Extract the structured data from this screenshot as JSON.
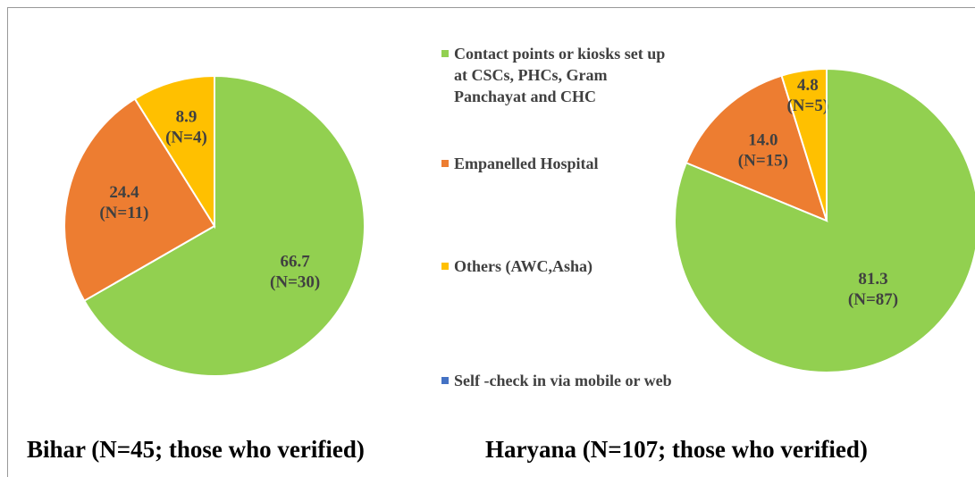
{
  "chart_data": [
    {
      "type": "pie",
      "title": "Bihar (N=45; those who verified)",
      "categories": [
        "Contact points or kiosks set up at CSCs, PHCs, Gram Panchayat and CHC",
        "Empanelled Hospital",
        "Others (AWC,Asha)",
        "Self -check in via mobile or web"
      ],
      "colors": [
        "#92d050",
        "#ed7d31",
        "#ffc000",
        "#4472c4"
      ],
      "values": [
        66.7,
        24.4,
        8.9,
        0
      ],
      "value_labels": [
        "66.7",
        "24.4",
        "8.9",
        null
      ],
      "counts": [
        30,
        11,
        4,
        0
      ],
      "count_labels": [
        "(N=30)",
        "(N=11)",
        "(N=4)",
        null
      ]
    },
    {
      "type": "pie",
      "title": "Haryana (N=107; those who verified)",
      "categories": [
        "Contact points or kiosks set up at CSCs, PHCs, Gram Panchayat and CHC",
        "Empanelled Hospital",
        "Others (AWC,Asha)",
        "Self -check in via mobile or web"
      ],
      "colors": [
        "#92d050",
        "#ed7d31",
        "#ffc000",
        "#4472c4"
      ],
      "values": [
        81.3,
        14.0,
        4.8,
        0
      ],
      "value_labels": [
        "81.3",
        "14.0",
        "4.8",
        null
      ],
      "counts": [
        87,
        15,
        5,
        0
      ],
      "count_labels": [
        "(N=87)",
        "(N=15)",
        "(N=5)",
        null
      ]
    }
  ]
}
